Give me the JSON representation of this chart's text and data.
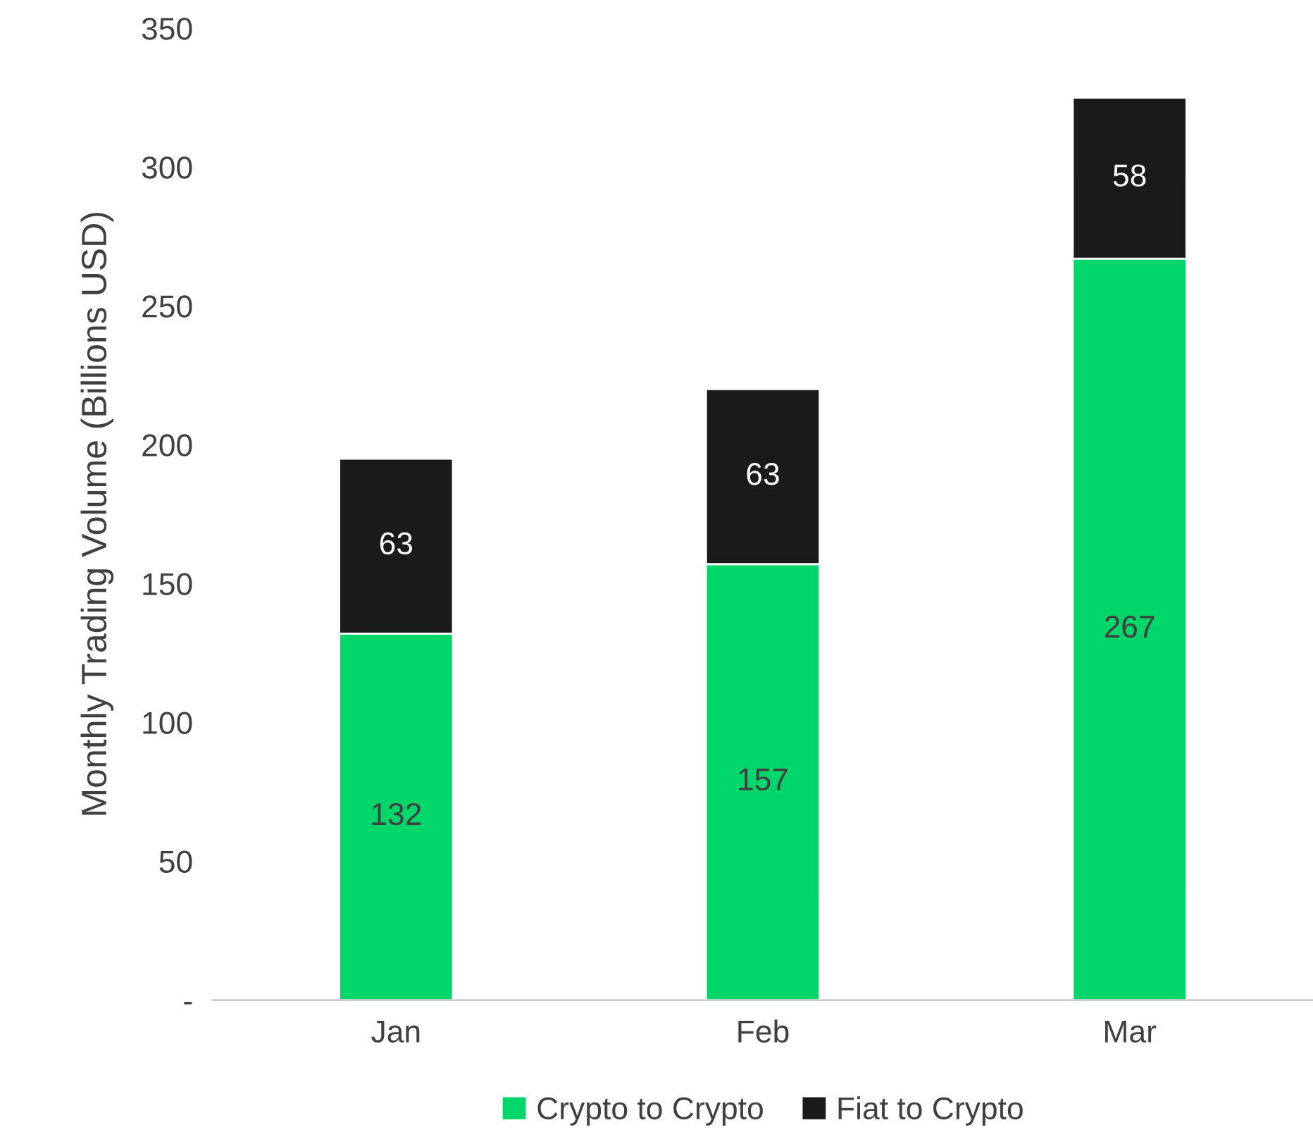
{
  "chart_data": {
    "type": "bar",
    "ylabel": "Monthly Trading Volume (Billions USD)",
    "categories": [
      "Jan",
      "Feb",
      "Mar"
    ],
    "series": [
      {
        "name": "Crypto to Crypto",
        "color": "#00d66a",
        "values": [
          132,
          157,
          267
        ]
      },
      {
        "name": "Fiat to Crypto",
        "color": "#1a1a1a",
        "values": [
          63,
          63,
          58
        ]
      }
    ],
    "stacked": true,
    "data_labels": true,
    "ylim": [
      0,
      350
    ],
    "yticks": [
      {
        "value": 0,
        "label": "-"
      },
      50,
      100,
      150,
      200,
      250,
      300,
      350
    ],
    "grid": false,
    "legend": "bottom"
  }
}
